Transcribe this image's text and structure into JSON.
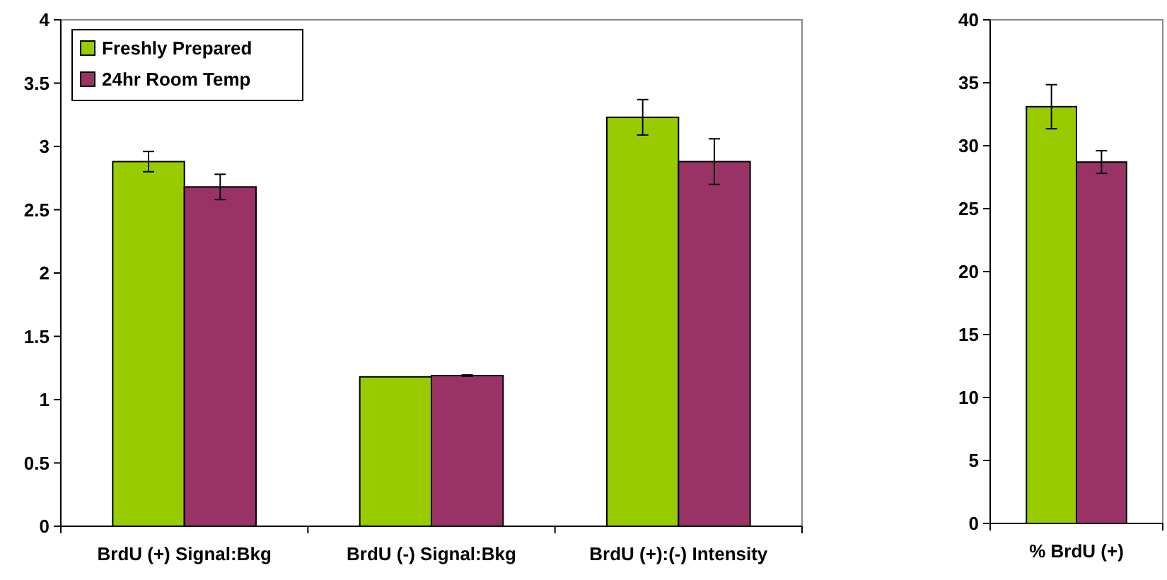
{
  "chart_data": [
    {
      "type": "bar",
      "categories": [
        "BrdU (+) Signal:Bkg",
        "BrdU (-) Signal:Bkg",
        "BrdU (+):(-) Intensity"
      ],
      "series": [
        {
          "name": "Freshly Prepared",
          "color": "#99cc00",
          "values": [
            2.88,
            1.18,
            3.23
          ],
          "errors": [
            0.08,
            null,
            0.14
          ]
        },
        {
          "name": "24hr Room Temp",
          "color": "#993366",
          "values": [
            2.68,
            1.19,
            2.88
          ],
          "errors": [
            0.1,
            0.005,
            0.18
          ]
        }
      ],
      "ylim": [
        0,
        4
      ],
      "yticks": [
        0,
        {
          "value": 0.5,
          "label": "0.5"
        },
        1,
        {
          "value": 1.5,
          "label": "1.5"
        },
        2,
        {
          "value": 2.5,
          "label": "2.5"
        },
        3,
        {
          "value": 3.5,
          "label": "3.5"
        },
        4
      ],
      "grid": false,
      "legend": "top left"
    },
    {
      "type": "bar",
      "categories": [
        "% BrdU (+)"
      ],
      "series": [
        {
          "color": "#99cc00",
          "values": [
            33.1
          ],
          "errors": [
            1.75
          ]
        },
        {
          "color": "#993366",
          "values": [
            28.7
          ],
          "errors": [
            0.9
          ]
        }
      ],
      "ylim": [
        0,
        40
      ],
      "yticks": [
        0,
        5,
        10,
        15,
        20,
        25,
        30,
        35,
        40
      ],
      "grid": false,
      "legend": false
    }
  ]
}
